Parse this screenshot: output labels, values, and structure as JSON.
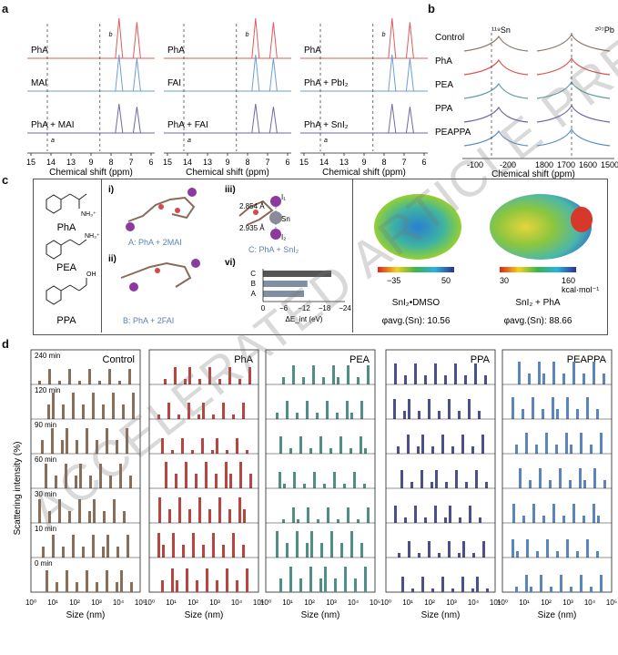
{
  "panel_labels": {
    "a": "a",
    "b": "b",
    "c": "c",
    "d": "d"
  },
  "a": {
    "x_title": "Chemical shift (ppm)",
    "ticks": [
      "15",
      "14",
      "13",
      "9",
      "8",
      "7",
      "6"
    ],
    "subpanels": [
      {
        "top": "PhA",
        "mid": "MAI",
        "bot": "PhA + MAI"
      },
      {
        "top": "PhA",
        "mid": "FAI",
        "bot": "PhA + FAI"
      },
      {
        "top": "PhA",
        "mid": "PhA + PbI₂",
        "bot": "PhA + SnI₂"
      }
    ],
    "peak_labels": {
      "a": "a",
      "b": "b",
      "c": "c"
    },
    "colors": {
      "top": "#e05a5a",
      "mid": "#6a9fd6",
      "bot": "#6d6aa8"
    }
  },
  "b": {
    "sn_label": "¹¹⁹Sn",
    "pb_label": "²⁰⁷Pb",
    "rows": [
      "Control",
      "PhA",
      "PEA",
      "PPA",
      "PEAPPA"
    ],
    "row_colors": [
      "#8b7a6a",
      "#d9534f",
      "#5a9e9e",
      "#6b6aa8",
      "#5b8fc6"
    ],
    "sn_ticks": [
      "-100",
      "-200"
    ],
    "pb_ticks": [
      "1800",
      "1700",
      "1600",
      "1500"
    ],
    "x_title": "Chemical shift (ppm)"
  },
  "c": {
    "molecules": [
      "PhA",
      "PEA",
      "PPA"
    ],
    "mol_charges": {
      "pha": "NH₃⁺",
      "pea": "NH₃⁺",
      "ppa": "OH"
    },
    "sub_i": "i)",
    "sub_ii": "ii)",
    "sub_iii": "iii)",
    "sub_vi": "vi)",
    "cap_i": "A: PhA + 2MAI",
    "cap_ii": "B: PhA + 2FAI",
    "cap_iii": "C: PhA + SnI₂",
    "bond1": "2.854 Å",
    "bond2": "2.935 Å",
    "atom_i1": "I₁",
    "atom_sn": "Sn",
    "atom_i2": "I₂",
    "bar_cats": [
      "C",
      "B",
      "A"
    ],
    "bar_ticks": [
      "0",
      "−6",
      "−12",
      "−18",
      "−24"
    ],
    "bar_xlabel": "ΔE_int (eV)",
    "esp_left": {
      "min": "−35",
      "max": "50",
      "title": "SnI₂•DMSO",
      "phi": "φavg.(Sn): 10.56"
    },
    "esp_right": {
      "min": "30",
      "max": "160",
      "unit": "kcal·mol⁻¹",
      "title": "SnI₂ + PhA",
      "phi": "φavg.(Sn): 88.66"
    }
  },
  "d": {
    "y_title": "Scattering intensity (%)",
    "x_title": "Size (nm)",
    "times": [
      "240 min",
      "120 min",
      "90 min",
      "60 min",
      "30 min",
      "10 min",
      "0 min"
    ],
    "columns": [
      "Control",
      "PhA",
      "PEA",
      "PPA",
      "PEAPPA"
    ],
    "col_colors": [
      "#8a6e58",
      "#b8453f",
      "#4f8f86",
      "#4b4f8c",
      "#5b86bd"
    ],
    "ticks": [
      "10⁰",
      "10¹",
      "10²",
      "10³",
      "10⁴",
      "10⁵"
    ]
  },
  "watermark": "ACCELERATED ARTICLE PREVIEW"
}
